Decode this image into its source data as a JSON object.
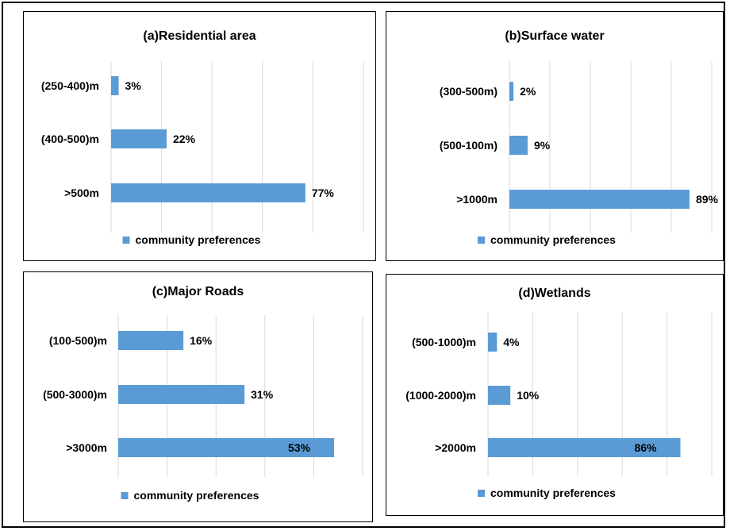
{
  "chart_data": [
    {
      "type": "bar",
      "orientation": "horizontal",
      "title": "(a)Residential area",
      "categories": [
        "(250-400)m",
        "(400-500)m",
        ">500m"
      ],
      "series": [
        {
          "name": "community preferences",
          "values": [
            3,
            22,
            77
          ]
        }
      ],
      "value_labels": [
        "3%",
        "22%",
        "77%"
      ],
      "xlim": [
        0,
        100
      ],
      "grid": true,
      "legend": "bottom",
      "bar_color": "#5b9bd5"
    },
    {
      "type": "bar",
      "orientation": "horizontal",
      "title": "(b)Surface water",
      "categories": [
        "(300-500m)",
        "(500-100m)",
        ">1000m"
      ],
      "series": [
        {
          "name": "community preferences",
          "values": [
            2,
            9,
            89
          ]
        }
      ],
      "value_labels": [
        "2%",
        "9%",
        "89%"
      ],
      "xlim": [
        0,
        100
      ],
      "grid": true,
      "legend": "bottom",
      "bar_color": "#5b9bd5"
    },
    {
      "type": "bar",
      "orientation": "horizontal",
      "title": "(c)Major Roads",
      "categories": [
        "(100-500)m",
        "(500-3000)m",
        ">3000m"
      ],
      "series": [
        {
          "name": "community preferences",
          "values": [
            16,
            31,
            53
          ]
        }
      ],
      "value_labels": [
        "16%",
        "31%",
        "53%"
      ],
      "xlim": [
        0,
        60
      ],
      "grid": true,
      "legend": "bottom",
      "bar_color": "#5b9bd5"
    },
    {
      "type": "bar",
      "orientation": "horizontal",
      "title": "(d)Wetlands",
      "categories": [
        "(500-1000)m",
        "(1000-2000)m",
        ">2000m"
      ],
      "series": [
        {
          "name": "community preferences",
          "values": [
            4,
            10,
            86
          ]
        }
      ],
      "value_labels": [
        "4%",
        "10%",
        "86%"
      ],
      "xlim": [
        0,
        100
      ],
      "grid": true,
      "legend": "bottom",
      "bar_color": "#5b9bd5"
    }
  ]
}
